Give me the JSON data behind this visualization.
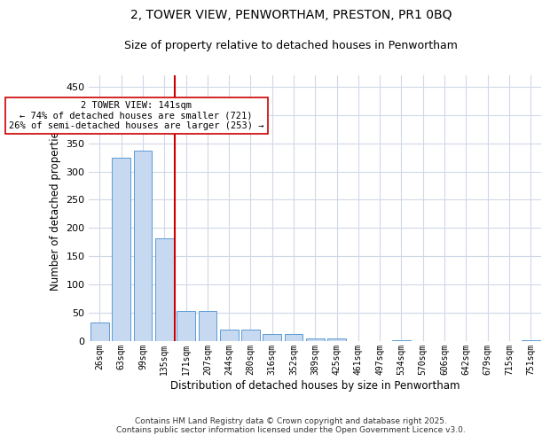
{
  "title1": "2, TOWER VIEW, PENWORTHAM, PRESTON, PR1 0BQ",
  "title2": "Size of property relative to detached houses in Penwortham",
  "xlabel": "Distribution of detached houses by size in Penwortham",
  "ylabel": "Number of detached properties",
  "categories": [
    "26sqm",
    "63sqm",
    "99sqm",
    "135sqm",
    "171sqm",
    "207sqm",
    "244sqm",
    "280sqm",
    "316sqm",
    "352sqm",
    "389sqm",
    "425sqm",
    "461sqm",
    "497sqm",
    "534sqm",
    "570sqm",
    "606sqm",
    "642sqm",
    "679sqm",
    "715sqm",
    "751sqm"
  ],
  "values": [
    33,
    325,
    337,
    181,
    53,
    53,
    21,
    21,
    12,
    12,
    5,
    5,
    0,
    0,
    1,
    0,
    0,
    0,
    0,
    0,
    2
  ],
  "bar_color": "#c6d9f0",
  "bar_edge_color": "#5b9bd5",
  "vline_x": 3.5,
  "vline_color": "#cc0000",
  "ylim": [
    0,
    470
  ],
  "yticks": [
    0,
    50,
    100,
    150,
    200,
    250,
    300,
    350,
    400,
    450
  ],
  "annotation_title": "2 TOWER VIEW: 141sqm",
  "annotation_line1": "← 74% of detached houses are smaller (721)",
  "annotation_line2": "26% of semi-detached houses are larger (253) →",
  "annotation_box_color": "#ffffff",
  "annotation_box_edge": "#cc0000",
  "bg_color": "#ffffff",
  "grid_color": "#d0d8e8",
  "footer1": "Contains HM Land Registry data © Crown copyright and database right 2025.",
  "footer2": "Contains public sector information licensed under the Open Government Licence v3.0."
}
